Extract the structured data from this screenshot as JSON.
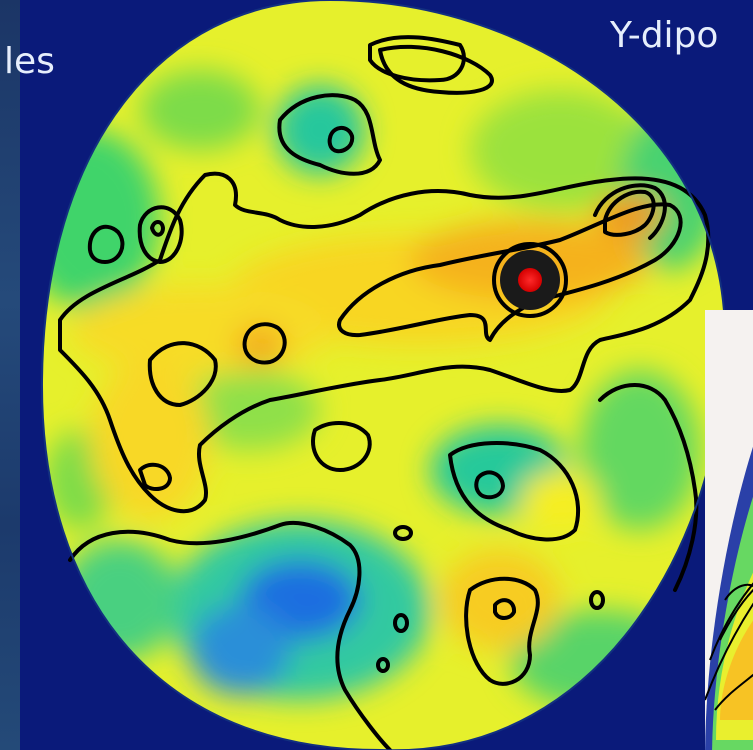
{
  "labels": {
    "left_fragment": "les",
    "right_fragment": "Y-dipo"
  },
  "colors": {
    "background": "#0a1a7a",
    "map_low": "#1565d8",
    "map_mid_low": "#27d08a",
    "map_mid": "#c5ea2a",
    "map_high": "#f7f21c",
    "map_peak": "#f2a21c",
    "marker": "#ff1a1a",
    "contour": "#000000"
  },
  "icons": [
    "red-dot-marker"
  ]
}
